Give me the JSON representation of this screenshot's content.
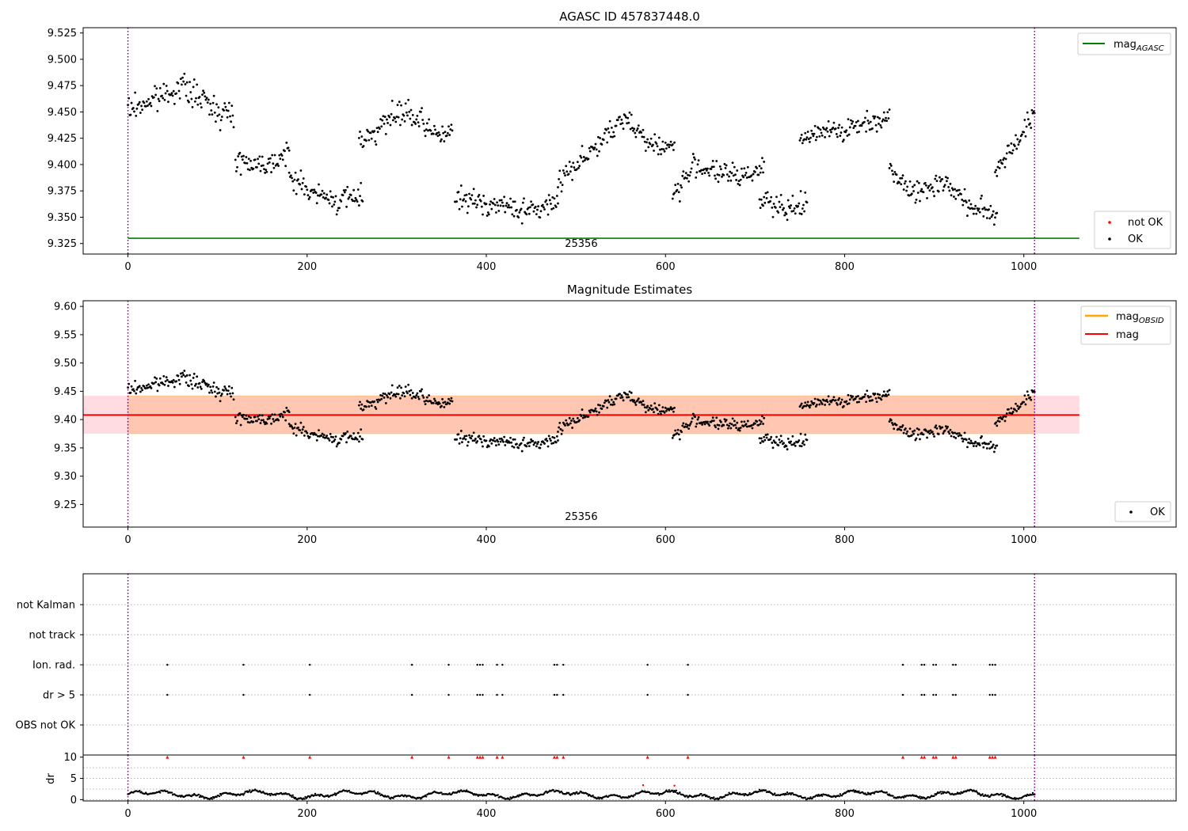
{
  "chart_data": [
    {
      "id": "top",
      "type": "scatter",
      "title": "AGASC ID 457837448.0",
      "xlim": [
        -50,
        1170
      ],
      "ylim": [
        9.315,
        9.53
      ],
      "xticks": [
        0,
        200,
        400,
        600,
        800,
        1000
      ],
      "yticks": [
        9.325,
        9.35,
        9.375,
        9.4,
        9.425,
        9.45,
        9.475,
        9.5,
        9.525
      ],
      "ytick_labels": [
        "9.325",
        "9.350",
        "9.375",
        "9.400",
        "9.425",
        "9.450",
        "9.475",
        "9.500",
        "9.525"
      ],
      "vlines": [
        0,
        1012
      ],
      "hline": {
        "name": "mag_AGASC",
        "y": 9.33,
        "x_range": [
          0,
          1062
        ],
        "color": "#008000"
      },
      "obsid_label": {
        "text": "25356",
        "x": 506
      },
      "legend_lines": [
        {
          "label": "mag",
          "sub": "AGASC",
          "color": "#008000"
        }
      ],
      "legend_points": [
        {
          "label": "not OK",
          "color": "#ff0000"
        },
        {
          "label": "OK",
          "color": "#000000"
        }
      ],
      "segments": [
        {
          "x0": 0,
          "x1": 118,
          "base": [
            9.452,
            9.462,
            9.475,
            9.458,
            9.445
          ],
          "noise": 0.012
        },
        {
          "x0": 120,
          "x1": 180,
          "base": [
            9.405,
            9.4,
            9.41
          ],
          "noise": 0.01
        },
        {
          "x0": 180,
          "x1": 262,
          "base": [
            9.39,
            9.372,
            9.365,
            9.372
          ],
          "noise": 0.01
        },
        {
          "x0": 258,
          "x1": 362,
          "base": [
            9.422,
            9.438,
            9.45,
            9.432,
            9.428
          ],
          "noise": 0.012
        },
        {
          "x0": 365,
          "x1": 480,
          "base": [
            9.368,
            9.364,
            9.36,
            9.355,
            9.365
          ],
          "noise": 0.01
        },
        {
          "x0": 480,
          "x1": 610,
          "base": [
            9.385,
            9.405,
            9.425,
            9.445,
            9.418,
            9.418
          ],
          "noise": 0.01
        },
        {
          "x0": 608,
          "x1": 710,
          "base": [
            9.37,
            9.4,
            9.392,
            9.388,
            9.398
          ],
          "noise": 0.01
        },
        {
          "x0": 705,
          "x1": 758,
          "base": [
            9.372,
            9.355,
            9.365
          ],
          "noise": 0.01
        },
        {
          "x0": 750,
          "x1": 850,
          "base": [
            9.42,
            9.435,
            9.432,
            9.44,
            9.445
          ],
          "noise": 0.01
        },
        {
          "x0": 850,
          "x1": 970,
          "base": [
            9.398,
            9.372,
            9.385,
            9.36,
            9.352
          ],
          "noise": 0.01
        },
        {
          "x0": 968,
          "x1": 1012,
          "base": [
            9.395,
            9.42,
            9.448
          ],
          "noise": 0.01
        }
      ]
    },
    {
      "id": "mid",
      "type": "scatter",
      "title": "Magnitude Estimates",
      "xlim": [
        -50,
        1170
      ],
      "ylim": [
        9.21,
        9.61
      ],
      "xticks": [
        0,
        200,
        400,
        600,
        800,
        1000
      ],
      "yticks": [
        9.25,
        9.3,
        9.35,
        9.4,
        9.45,
        9.5,
        9.55,
        9.6
      ],
      "ytick_labels": [
        "9.25",
        "9.30",
        "9.35",
        "9.40",
        "9.45",
        "9.50",
        "9.55",
        "9.60"
      ],
      "vlines": [
        0,
        1012
      ],
      "mag": {
        "name": "mag",
        "y": 9.408,
        "x_range": [
          -50,
          1062
        ],
        "color": "#ff0000"
      },
      "mag_band": {
        "y_range": [
          9.375,
          9.442
        ],
        "x_range": [
          -50,
          1062
        ],
        "color": "#ffc0cb"
      },
      "mag_obsid": {
        "name": "mag_OBSID",
        "y": 9.408,
        "x_range": [
          0,
          1012
        ],
        "color": "#ffa500"
      },
      "mag_obsid_band": {
        "y_range": [
          9.375,
          9.442
        ],
        "x_range": [
          0,
          1012
        ],
        "color": "#ffb48a"
      },
      "obsid_label": {
        "text": "25356",
        "x": 506
      },
      "legend_lines": [
        {
          "label": "mag",
          "sub": "OBSID",
          "color": "#ffa500"
        },
        {
          "label": "mag",
          "sub": "",
          "color": "#ff0000"
        }
      ],
      "legend_points": [
        {
          "label": "OK",
          "color": "#000000"
        }
      ]
    },
    {
      "id": "flags",
      "type": "scatter",
      "xlim": [
        -50,
        1170
      ],
      "categories": [
        "OBS not OK",
        "dr > 5",
        "Ion. rad.",
        "not track",
        "not Kalman"
      ],
      "vlines": [
        0,
        1012
      ],
      "flag_points_x": [
        44,
        129,
        203,
        317,
        358,
        390,
        393,
        396,
        412,
        418,
        476,
        479,
        486,
        580,
        625,
        865,
        886,
        889,
        899,
        902,
        921,
        924,
        962,
        965,
        968
      ]
    },
    {
      "id": "dr",
      "type": "scatter",
      "ylabel": "dr",
      "xlim": [
        -50,
        1170
      ],
      "ylim": [
        -0.3,
        10.5
      ],
      "xticks": [
        0,
        200,
        400,
        600,
        800,
        1000
      ],
      "yticks": [
        0,
        5,
        10
      ],
      "ytick_labels": [
        "0",
        "5",
        "10"
      ],
      "vlines": [
        0,
        1012
      ],
      "clipped_value": 10,
      "outliers": [
        {
          "x": 575,
          "y": 3.4
        },
        {
          "x": 610,
          "y": 3.3
        }
      ]
    }
  ]
}
